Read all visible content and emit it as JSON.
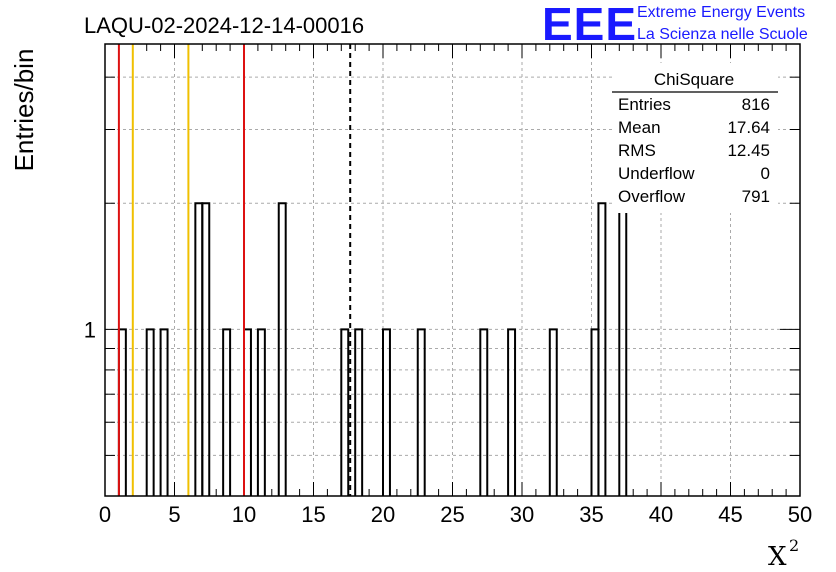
{
  "chart_data": {
    "type": "bar",
    "title": "LAQU-02-2024-12-14-00016",
    "ylabel": "Entries/bin",
    "xlabel": "X",
    "xlabel_sup": "2",
    "xlim": [
      0,
      50
    ],
    "y_log": true,
    "ylim": [
      0.4,
      4.8
    ],
    "grid": true,
    "x_ticks": [
      "0",
      "5",
      "10",
      "15",
      "20",
      "25",
      "30",
      "35",
      "40",
      "45",
      "50"
    ],
    "y_ticks": [
      "1"
    ],
    "bin_width": 0.5,
    "bins": [
      {
        "x": 1.0,
        "value": 1
      },
      {
        "x": 3.0,
        "value": 1
      },
      {
        "x": 4.0,
        "value": 1
      },
      {
        "x": 6.5,
        "value": 2
      },
      {
        "x": 7.0,
        "value": 2
      },
      {
        "x": 8.5,
        "value": 1
      },
      {
        "x": 10.0,
        "value": 1
      },
      {
        "x": 11.0,
        "value": 1
      },
      {
        "x": 12.5,
        "value": 2
      },
      {
        "x": 17.0,
        "value": 1
      },
      {
        "x": 18.0,
        "value": 1
      },
      {
        "x": 20.0,
        "value": 1
      },
      {
        "x": 22.5,
        "value": 1
      },
      {
        "x": 27.0,
        "value": 1
      },
      {
        "x": 29.0,
        "value": 1
      },
      {
        "x": 32.0,
        "value": 1
      },
      {
        "x": 35.0,
        "value": 1
      },
      {
        "x": 35.5,
        "value": 2
      },
      {
        "x": 37.0,
        "value": 2
      }
    ],
    "vlines": [
      {
        "x": 1.0,
        "color": "#dd1111",
        "style": "solid"
      },
      {
        "x": 2.0,
        "color": "#f0c000",
        "style": "solid"
      },
      {
        "x": 6.0,
        "color": "#f0c000",
        "style": "solid"
      },
      {
        "x": 10.0,
        "color": "#dd1111",
        "style": "solid"
      },
      {
        "x": 17.64,
        "color": "#000000",
        "style": "dashed"
      }
    ],
    "stats": {
      "name": "ChiSquare",
      "rows": [
        {
          "label": "Entries",
          "value": "816"
        },
        {
          "label": "Mean",
          "value": "17.64"
        },
        {
          "label": "RMS",
          "value": "12.45"
        },
        {
          "label": "Underflow",
          "value": "0"
        },
        {
          "label": "Overflow",
          "value": "791"
        }
      ]
    }
  },
  "brand": {
    "logo": "EEE",
    "line1": "Extreme Energy Events",
    "line2": "La Scienza nelle Scuole",
    "color": "#1a1aff"
  }
}
